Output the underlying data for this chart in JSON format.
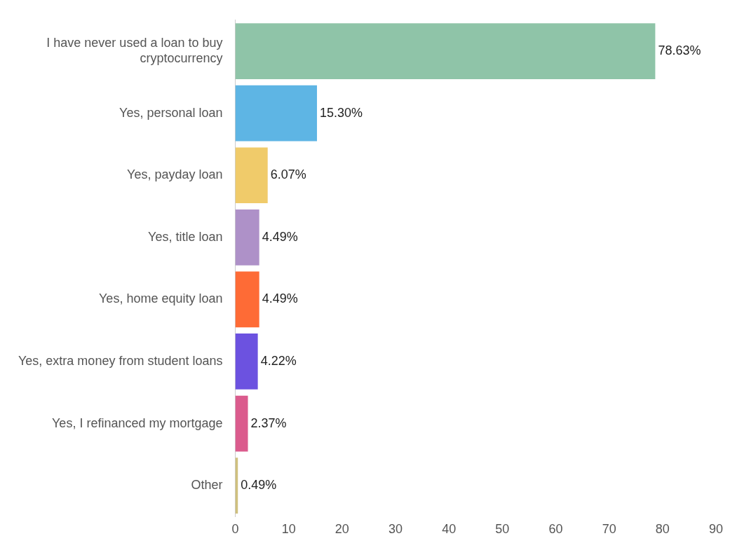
{
  "chart_data": {
    "type": "bar",
    "orientation": "horizontal",
    "categories": [
      "I have never used a loan to buy cryptocurrency",
      "Yes, personal loan",
      "Yes, payday loan",
      "Yes, title loan",
      "Yes, home equity loan",
      "Yes, extra money from student loans",
      "Yes, I refinanced my mortgage",
      "Other"
    ],
    "values": [
      78.63,
      15.3,
      6.07,
      4.49,
      4.49,
      4.22,
      2.37,
      0.49
    ],
    "value_labels": [
      "78.63%",
      "15.30%",
      "6.07%",
      "4.49%",
      "4.49%",
      "4.22%",
      "2.37%",
      "0.49%"
    ],
    "colors": [
      "#8fc4a8",
      "#5eb5e4",
      "#f0cb6a",
      "#ae91c8",
      "#fe6b36",
      "#6c52e0",
      "#db5b8d",
      "#cfc07e"
    ],
    "xlim": [
      0,
      90
    ],
    "xticks": [
      0,
      10,
      20,
      30,
      40,
      50,
      60,
      70,
      80,
      90
    ],
    "grid": false,
    "legend": false
  }
}
